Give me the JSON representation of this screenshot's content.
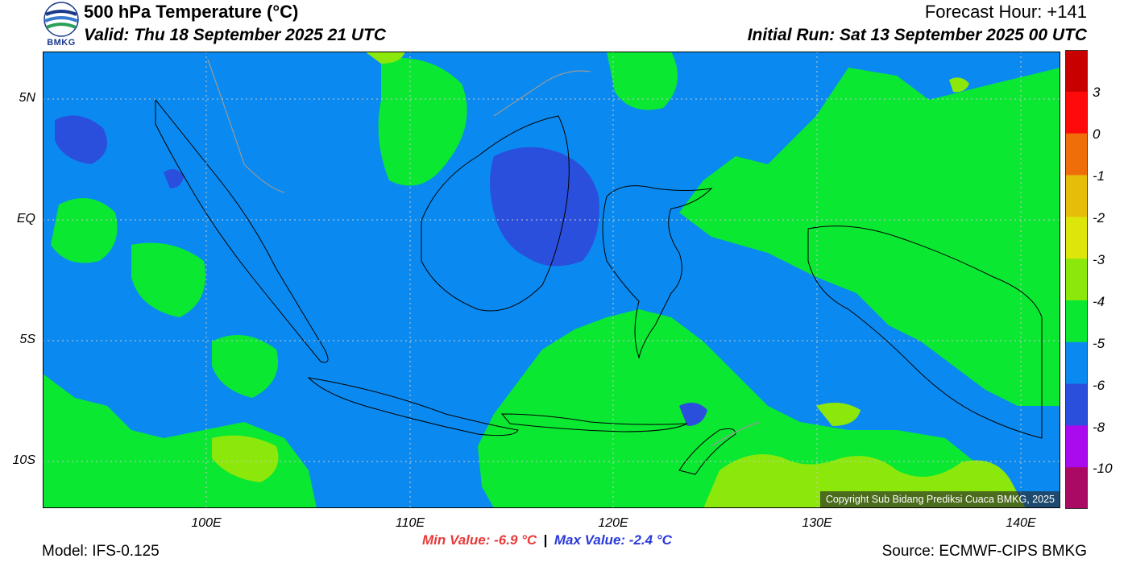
{
  "header": {
    "title": "500 hPa Temperature (°C)",
    "valid": "Valid: Thu 18 September 2025 21 UTC",
    "forecast_hour": "Forecast Hour: +141",
    "initial_run": "Initial Run: Sat 13 September 2025 00 UTC"
  },
  "logo": {
    "text": "BMKG"
  },
  "map": {
    "lat_labels": [
      "5N",
      "EQ",
      "5S",
      "10S"
    ],
    "lon_labels": [
      "100E",
      "110E",
      "120E",
      "130E",
      "140E"
    ],
    "lon_range": [
      92,
      142
    ],
    "lat_range": [
      -12,
      7
    ],
    "copyright": "Copyright Sub Bidang Prediksi Cuaca BMKG, 2025",
    "field_colors": {
      "-6..-5": "#0a8af0",
      "-5..-4": "#0ae832",
      "-8..-6": "#2a4fdc",
      "-4..-3": "#8ce80a"
    }
  },
  "colorbar": {
    "labels": [
      "3",
      "0",
      "-1",
      "-2",
      "-3",
      "-4",
      "-5",
      "-6",
      "-8",
      "-10"
    ],
    "colors": [
      "#c80000",
      "#ff0a0a",
      "#f06e0a",
      "#e6be0a",
      "#dce60a",
      "#8ce80a",
      "#0ae832",
      "#0a8af0",
      "#2a4fdc",
      "#aa0aee",
      "#aa0a64"
    ]
  },
  "footer": {
    "model": "Model: IFS-0.125",
    "min_value": "Min Value: -6.9 °C",
    "separator": "|",
    "max_value": "Max Value: -2.4 °C",
    "source": "Source: ECMWF-CIPS BMKG"
  }
}
